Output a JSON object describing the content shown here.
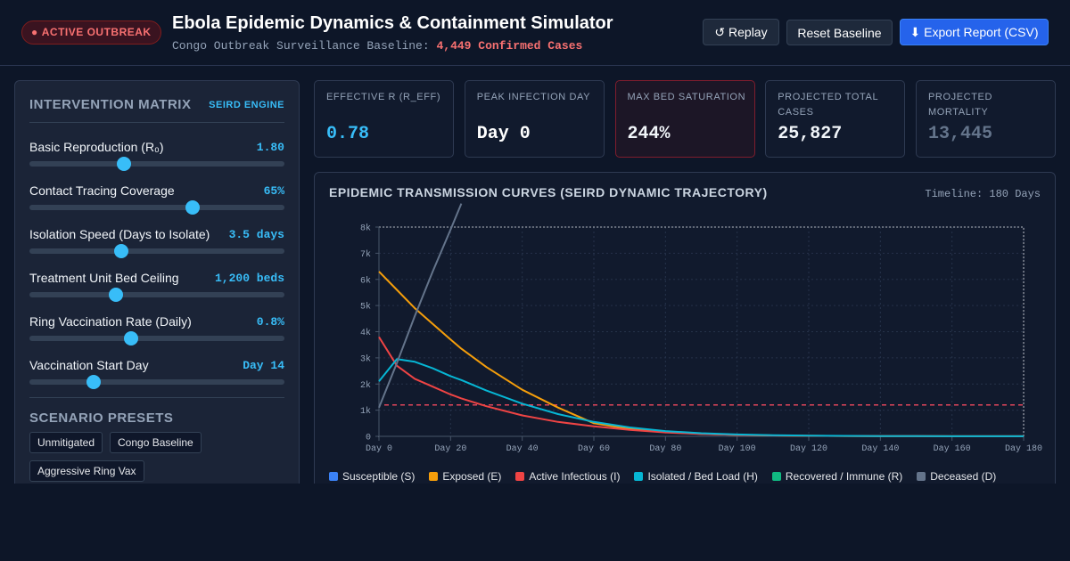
{
  "header": {
    "badge": "ACTIVE OUTBREAK",
    "title": "Ebola Epidemic Dynamics & Containment Simulator",
    "subtitle": "Congo Outbreak Surveillance Baseline:",
    "subtitle_highlight": "4,449 Confirmed Cases",
    "buttons": [
      "↺ Replay",
      "Reset Baseline",
      "⬇ Export Report (CSV)"
    ]
  },
  "sidebar": {
    "title": "INTERVENTION MATRIX",
    "engine": "SEIRD ENGINE",
    "sliders": [
      {
        "label": "Basic Reproduction (R₀)",
        "value": "1.80"
      },
      {
        "label": "Contact Tracing Coverage",
        "value": "65%"
      },
      {
        "label": "Isolation Speed (Days to Isolate)",
        "value": "3.5 days"
      },
      {
        "label": "Treatment Unit Bed Ceiling",
        "value": "1,200 beds"
      },
      {
        "label": "Ring Vaccination Rate (Daily)",
        "value": "0.8%"
      },
      {
        "label": "Vaccination Start Day",
        "value": "Day 14"
      }
    ],
    "presets_title": "SCENARIO PRESETS",
    "presets": [
      "Unmitigated",
      "Congo Baseline",
      "Aggressive Ring Vax"
    ]
  },
  "kpis": [
    {
      "label": "EFFECTIVE R (R_EFF)",
      "value": "0.78"
    },
    {
      "label": "PEAK INFECTION DAY",
      "value": "Day 0"
    },
    {
      "label": "MAX BED SATURATION",
      "value": "244%"
    },
    {
      "label": "PROJECTED TOTAL CASES",
      "value": "25,827"
    },
    {
      "label": "PROJECTED MORTALITY",
      "value": "13,445"
    }
  ],
  "chart_data": {
    "type": "line",
    "title": "EPIDEMIC TRANSMISSION CURVES (SEIRD DYNAMIC TRAJECTORY)",
    "subtitle": "Timeline: 180 Days",
    "x": [
      0,
      5,
      10,
      15,
      20,
      23,
      30,
      40,
      50,
      60,
      70,
      80,
      90,
      100,
      110,
      120,
      130,
      140,
      150,
      160,
      170,
      180
    ],
    "xlim": [
      0,
      180
    ],
    "xticks": [
      {
        "value": 0,
        "label": "Day 0"
      },
      {
        "value": 20,
        "label": "Day 20"
      },
      {
        "value": 40,
        "label": "Day 40"
      },
      {
        "value": 60,
        "label": "Day 60"
      },
      {
        "value": 80,
        "label": "Day 80"
      },
      {
        "value": 100,
        "label": "Day 100"
      },
      {
        "value": 120,
        "label": "Day 120"
      },
      {
        "value": 140,
        "label": "Day 140"
      },
      {
        "value": 160,
        "label": "Day 160"
      },
      {
        "value": 180,
        "label": "Day 180"
      }
    ],
    "ylim": [
      0,
      8000
    ],
    "yticks": [
      0,
      {
        "value": 1000,
        "label": "1k"
      },
      {
        "value": 2000,
        "label": "2k"
      },
      {
        "value": 3000,
        "label": "3k"
      },
      {
        "value": 4000,
        "label": "4k"
      },
      {
        "value": 5000,
        "label": "5k"
      },
      {
        "value": 6000,
        "label": "6k"
      },
      {
        "value": 7000,
        "label": "7k"
      },
      {
        "value": 8000,
        "label": "8k"
      }
    ],
    "grid": true,
    "reference_line": {
      "value": 1200,
      "color": "#e0455a"
    },
    "series": [
      {
        "name": "Susceptible (S)",
        "color": "#3b82f6",
        "values": [
          null,
          null,
          null,
          null,
          null,
          null,
          null,
          null,
          null,
          null,
          null,
          null,
          null,
          null,
          null,
          null,
          null,
          null,
          null,
          null,
          null,
          null
        ]
      },
      {
        "name": "Exposed (E)",
        "color": "#f59e0b",
        "values": [
          6300,
          5600,
          4900,
          4300,
          3700,
          3350,
          2650,
          1780,
          1100,
          500,
          280,
          160,
          95,
          55,
          35,
          22,
          14,
          9,
          6,
          4,
          3,
          2
        ]
      },
      {
        "name": "Active Infectious (I)",
        "color": "#ef4444",
        "values": [
          3800,
          2700,
          2200,
          1900,
          1600,
          1450,
          1150,
          800,
          550,
          380,
          250,
          150,
          90,
          55,
          35,
          22,
          14,
          9,
          6,
          4,
          3,
          2
        ]
      },
      {
        "name": "Isolated / Bed Load (H)",
        "color": "#06b6d4",
        "values": [
          2100,
          2950,
          2850,
          2600,
          2300,
          2150,
          1750,
          1250,
          850,
          550,
          340,
          200,
          120,
          70,
          42,
          26,
          16,
          10,
          7,
          5,
          3,
          2
        ]
      },
      {
        "name": "Recovered / Immune (R)",
        "color": "#10b981",
        "values": [
          null,
          null,
          null,
          null,
          null,
          null,
          null,
          null,
          null,
          null,
          null,
          null,
          null,
          null,
          null,
          null,
          null,
          null,
          null,
          null,
          null,
          null
        ]
      },
      {
        "name": "Deceased (D)",
        "color": "#64748b",
        "values": [
          1100,
          2800,
          4600,
          6300,
          7900,
          8900,
          null,
          null,
          null,
          null,
          null,
          null,
          null,
          null,
          null,
          null,
          null,
          null,
          null,
          null,
          null,
          null
        ]
      }
    ]
  }
}
